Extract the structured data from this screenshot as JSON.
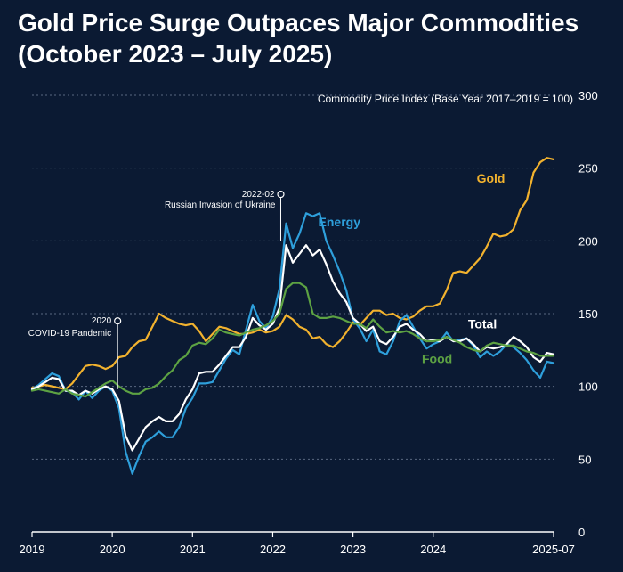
{
  "chart_data": {
    "type": "line",
    "title": "Gold Price Surge Outpaces Major Commodities",
    "subtitle": "(October 2023 – July 2025)",
    "ylabel": "Commodity Price Index (Base Year 2017–2019 = 100)",
    "xlabel": "",
    "ylim": [
      0,
      300
    ],
    "yticks": [
      "0",
      "50",
      "100",
      "150",
      "200",
      "250",
      "300"
    ],
    "xlim": [
      0,
      78
    ],
    "x_tick_labels": [
      {
        "label": "2019",
        "x": 0
      },
      {
        "label": "2020",
        "x": 12
      },
      {
        "label": "2021",
        "x": 24
      },
      {
        "label": "2022",
        "x": 36
      },
      {
        "label": "2023",
        "x": 48
      },
      {
        "label": "2024",
        "x": 60
      },
      {
        "label": "2025-07",
        "x": 78
      }
    ],
    "x_unit": "months since Jan 2019",
    "series": [
      {
        "name": "Gold",
        "color": "#f2b22e",
        "values": [
          [
            0,
            99
          ],
          [
            2,
            101
          ],
          [
            4,
            99
          ],
          [
            5,
            98
          ],
          [
            6,
            102
          ],
          [
            7,
            108
          ],
          [
            8,
            114
          ],
          [
            9,
            115
          ],
          [
            10,
            114
          ],
          [
            11,
            112
          ],
          [
            12,
            114
          ],
          [
            13,
            120
          ],
          [
            14,
            121
          ],
          [
            15,
            127
          ],
          [
            16,
            131
          ],
          [
            17,
            132
          ],
          [
            18,
            141
          ],
          [
            19,
            150
          ],
          [
            20,
            147
          ],
          [
            21,
            145
          ],
          [
            22,
            143
          ],
          [
            23,
            142
          ],
          [
            24,
            143
          ],
          [
            25,
            138
          ],
          [
            26,
            131
          ],
          [
            27,
            136
          ],
          [
            28,
            141
          ],
          [
            29,
            140
          ],
          [
            30,
            138
          ],
          [
            31,
            136
          ],
          [
            32,
            136
          ],
          [
            33,
            137
          ],
          [
            34,
            139
          ],
          [
            35,
            137
          ],
          [
            36,
            138
          ],
          [
            37,
            141
          ],
          [
            38,
            149
          ],
          [
            39,
            146
          ],
          [
            40,
            141
          ],
          [
            41,
            139
          ],
          [
            42,
            133
          ],
          [
            43,
            134
          ],
          [
            44,
            129
          ],
          [
            45,
            127
          ],
          [
            46,
            131
          ],
          [
            47,
            137
          ],
          [
            48,
            144
          ],
          [
            49,
            142
          ],
          [
            50,
            147
          ],
          [
            51,
            152
          ],
          [
            52,
            152
          ],
          [
            53,
            149
          ],
          [
            54,
            150
          ],
          [
            55,
            147
          ],
          [
            56,
            146
          ],
          [
            57,
            148
          ],
          [
            58,
            152
          ],
          [
            59,
            155
          ],
          [
            60,
            155
          ],
          [
            61,
            157
          ],
          [
            62,
            166
          ],
          [
            63,
            178
          ],
          [
            64,
            179
          ],
          [
            65,
            178
          ],
          [
            66,
            183
          ],
          [
            67,
            188
          ],
          [
            68,
            196
          ],
          [
            69,
            205
          ],
          [
            70,
            203
          ],
          [
            71,
            204
          ],
          [
            72,
            208
          ],
          [
            73,
            221
          ],
          [
            74,
            228
          ],
          [
            75,
            247
          ],
          [
            76,
            254
          ],
          [
            77,
            257
          ],
          [
            78,
            256
          ]
        ]
      },
      {
        "name": "Energy",
        "color": "#2e9fdb",
        "values": [
          [
            0,
            98
          ],
          [
            1,
            101
          ],
          [
            2,
            105
          ],
          [
            3,
            109
          ],
          [
            4,
            107
          ],
          [
            5,
            97
          ],
          [
            6,
            96
          ],
          [
            7,
            91
          ],
          [
            8,
            97
          ],
          [
            9,
            92
          ],
          [
            10,
            97
          ],
          [
            11,
            100
          ],
          [
            12,
            97
          ],
          [
            13,
            85
          ],
          [
            14,
            55
          ],
          [
            15,
            40
          ],
          [
            16,
            52
          ],
          [
            17,
            62
          ],
          [
            18,
            65
          ],
          [
            19,
            69
          ],
          [
            20,
            65
          ],
          [
            21,
            65
          ],
          [
            22,
            72
          ],
          [
            23,
            85
          ],
          [
            24,
            92
          ],
          [
            25,
            102
          ],
          [
            26,
            102
          ],
          [
            27,
            103
          ],
          [
            28,
            111
          ],
          [
            29,
            119
          ],
          [
            30,
            125
          ],
          [
            31,
            122
          ],
          [
            32,
            139
          ],
          [
            33,
            156
          ],
          [
            34,
            145
          ],
          [
            35,
            140
          ],
          [
            36,
            148
          ],
          [
            37,
            167
          ],
          [
            38,
            212
          ],
          [
            39,
            195
          ],
          [
            40,
            205
          ],
          [
            41,
            219
          ],
          [
            42,
            217
          ],
          [
            43,
            219
          ],
          [
            44,
            200
          ],
          [
            45,
            190
          ],
          [
            46,
            179
          ],
          [
            47,
            166
          ],
          [
            48,
            146
          ],
          [
            49,
            140
          ],
          [
            50,
            131
          ],
          [
            51,
            139
          ],
          [
            52,
            124
          ],
          [
            53,
            122
          ],
          [
            54,
            131
          ],
          [
            55,
            145
          ],
          [
            56,
            149
          ],
          [
            57,
            141
          ],
          [
            58,
            133
          ],
          [
            59,
            126
          ],
          [
            60,
            129
          ],
          [
            61,
            131
          ],
          [
            62,
            137
          ],
          [
            63,
            131
          ],
          [
            64,
            132
          ],
          [
            65,
            133
          ],
          [
            66,
            128
          ],
          [
            67,
            120
          ],
          [
            68,
            124
          ],
          [
            69,
            121
          ],
          [
            70,
            124
          ],
          [
            71,
            129
          ],
          [
            72,
            127
          ],
          [
            73,
            123
          ],
          [
            74,
            118
          ],
          [
            75,
            111
          ],
          [
            76,
            106
          ],
          [
            77,
            117
          ],
          [
            78,
            116
          ]
        ]
      },
      {
        "name": "Total",
        "color": "#ffffff",
        "values": [
          [
            0,
            98
          ],
          [
            1,
            100
          ],
          [
            2,
            103
          ],
          [
            3,
            106
          ],
          [
            4,
            105
          ],
          [
            5,
            97
          ],
          [
            6,
            97
          ],
          [
            7,
            94
          ],
          [
            8,
            97
          ],
          [
            9,
            95
          ],
          [
            10,
            98
          ],
          [
            11,
            100
          ],
          [
            12,
            98
          ],
          [
            13,
            90
          ],
          [
            14,
            66
          ],
          [
            15,
            56
          ],
          [
            16,
            64
          ],
          [
            17,
            72
          ],
          [
            18,
            76
          ],
          [
            19,
            79
          ],
          [
            20,
            76
          ],
          [
            21,
            76
          ],
          [
            22,
            81
          ],
          [
            23,
            91
          ],
          [
            24,
            98
          ],
          [
            25,
            109
          ],
          [
            26,
            110
          ],
          [
            27,
            110
          ],
          [
            28,
            115
          ],
          [
            29,
            121
          ],
          [
            30,
            127
          ],
          [
            31,
            127
          ],
          [
            32,
            134
          ],
          [
            33,
            147
          ],
          [
            34,
            142
          ],
          [
            35,
            139
          ],
          [
            36,
            143
          ],
          [
            37,
            154
          ],
          [
            38,
            197
          ],
          [
            39,
            185
          ],
          [
            40,
            191
          ],
          [
            41,
            197
          ],
          [
            42,
            190
          ],
          [
            43,
            194
          ],
          [
            44,
            184
          ],
          [
            45,
            172
          ],
          [
            46,
            164
          ],
          [
            47,
            158
          ],
          [
            48,
            147
          ],
          [
            49,
            143
          ],
          [
            50,
            138
          ],
          [
            51,
            141
          ],
          [
            52,
            131
          ],
          [
            53,
            129
          ],
          [
            54,
            134
          ],
          [
            55,
            141
          ],
          [
            56,
            143
          ],
          [
            57,
            139
          ],
          [
            58,
            136
          ],
          [
            59,
            131
          ],
          [
            60,
            132
          ],
          [
            61,
            131
          ],
          [
            62,
            134
          ],
          [
            63,
            131
          ],
          [
            64,
            131
          ],
          [
            65,
            133
          ],
          [
            66,
            129
          ],
          [
            67,
            124
          ],
          [
            68,
            127
          ],
          [
            69,
            126
          ],
          [
            70,
            127
          ],
          [
            71,
            129
          ],
          [
            72,
            134
          ],
          [
            73,
            131
          ],
          [
            74,
            127
          ],
          [
            75,
            120
          ],
          [
            76,
            117
          ],
          [
            77,
            123
          ],
          [
            78,
            122
          ]
        ]
      },
      {
        "name": "Food",
        "color": "#5da243",
        "values": [
          [
            0,
            97
          ],
          [
            1,
            98
          ],
          [
            2,
            97
          ],
          [
            3,
            96
          ],
          [
            4,
            95
          ],
          [
            5,
            98
          ],
          [
            6,
            95
          ],
          [
            7,
            94
          ],
          [
            8,
            93
          ],
          [
            9,
            96
          ],
          [
            10,
            99
          ],
          [
            11,
            102
          ],
          [
            12,
            104
          ],
          [
            13,
            100
          ],
          [
            14,
            97
          ],
          [
            15,
            95
          ],
          [
            16,
            95
          ],
          [
            17,
            98
          ],
          [
            18,
            99
          ],
          [
            19,
            102
          ],
          [
            20,
            107
          ],
          [
            21,
            111
          ],
          [
            22,
            118
          ],
          [
            23,
            121
          ],
          [
            24,
            128
          ],
          [
            25,
            130
          ],
          [
            26,
            129
          ],
          [
            27,
            133
          ],
          [
            28,
            139
          ],
          [
            29,
            137
          ],
          [
            30,
            136
          ],
          [
            31,
            135
          ],
          [
            32,
            137
          ],
          [
            33,
            139
          ],
          [
            34,
            140
          ],
          [
            35,
            142
          ],
          [
            36,
            145
          ],
          [
            37,
            150
          ],
          [
            38,
            167
          ],
          [
            39,
            171
          ],
          [
            40,
            171
          ],
          [
            41,
            168
          ],
          [
            42,
            150
          ],
          [
            43,
            147
          ],
          [
            44,
            147
          ],
          [
            45,
            148
          ],
          [
            46,
            147
          ],
          [
            47,
            145
          ],
          [
            48,
            143
          ],
          [
            49,
            143
          ],
          [
            50,
            140
          ],
          [
            51,
            146
          ],
          [
            52,
            141
          ],
          [
            53,
            137
          ],
          [
            54,
            138
          ],
          [
            55,
            137
          ],
          [
            56,
            138
          ],
          [
            57,
            136
          ],
          [
            58,
            133
          ],
          [
            59,
            131
          ],
          [
            60,
            131
          ],
          [
            61,
            132
          ],
          [
            62,
            134
          ],
          [
            63,
            132
          ],
          [
            64,
            130
          ],
          [
            65,
            127
          ],
          [
            66,
            125
          ],
          [
            67,
            124
          ],
          [
            68,
            128
          ],
          [
            69,
            130
          ],
          [
            70,
            129
          ],
          [
            71,
            128
          ],
          [
            72,
            128
          ],
          [
            73,
            126
          ],
          [
            74,
            124
          ],
          [
            75,
            123
          ],
          [
            76,
            121
          ],
          [
            77,
            121
          ],
          [
            78,
            121
          ]
        ]
      }
    ],
    "annotations": [
      {
        "name": "covid",
        "year": "2020",
        "text": "COVID-19 Pandemic",
        "x": 12.8,
        "y": 145
      },
      {
        "name": "ukraine",
        "year": "2022-02",
        "text": "Russian Invasion of Ukraine",
        "x": 37.2,
        "y": 232
      }
    ],
    "series_labels": [
      {
        "name": "Gold",
        "x": 66.5,
        "y": 240
      },
      {
        "name": "Energy",
        "x": 42.8,
        "y": 210
      },
      {
        "name": "Total",
        "x": 65.2,
        "y": 140
      },
      {
        "name": "Food",
        "x": 58.3,
        "y": 116
      }
    ],
    "grid": true,
    "colors": {
      "background": "#0b1a33",
      "grid": "#7c8aa3",
      "text": "#ffffff"
    }
  }
}
